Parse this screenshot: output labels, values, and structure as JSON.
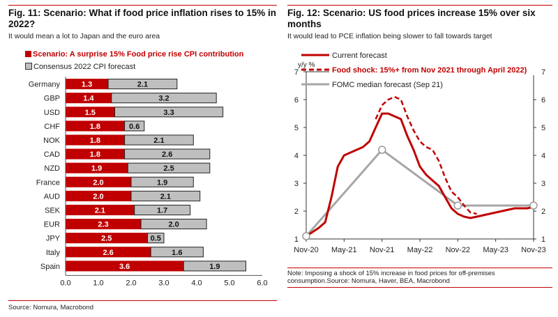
{
  "left": {
    "title": "Fig. 11: Scenario: What if food price inflation rises to 15% in 2022?",
    "subtitle": "It would mean a lot to Japan and the euro area",
    "source": "Source: Nomura, Macrobond"
  },
  "right": {
    "title": "Fig. 12: Scenario: US food prices increase 15% over six months",
    "subtitle": "It would lead to PCE inflation being slower to fall towards target",
    "note": "Note: Imposing a shock of 15% increase in food prices for off-premises consumption.Source: Nomura, Haver, BEA, Macrobond"
  },
  "colors": {
    "accent": "#c00000",
    "gray_bar": "#bfbfbf",
    "fomc": "#a6a6a6"
  },
  "chart_data": [
    {
      "type": "bar",
      "orientation": "horizontal",
      "stacked": true,
      "categories": [
        "Germany",
        "GBP",
        "USD",
        "CHF",
        "NOK",
        "CAD",
        "NZD",
        "France",
        "AUD",
        "SEK",
        "EUR",
        "JPY",
        "Italy",
        "Spain"
      ],
      "series": [
        {
          "name": "Scenario: A surprise 15% Food price rise CPI contribution",
          "color": "#c00000",
          "values": [
            1.3,
            1.4,
            1.5,
            1.8,
            1.8,
            1.8,
            1.9,
            2.0,
            2.0,
            2.1,
            2.3,
            2.5,
            2.6,
            3.6
          ]
        },
        {
          "name": "Consensus 2022 CPI forecast",
          "color": "#bfbfbf",
          "values": [
            2.1,
            3.2,
            3.3,
            0.6,
            2.1,
            2.6,
            2.5,
            1.9,
            2.1,
            1.7,
            2.0,
            0.5,
            1.6,
            1.9
          ]
        }
      ],
      "xlim": [
        0,
        6
      ],
      "xticks": [
        "0.0",
        "1.0",
        "2.0",
        "3.0",
        "4.0",
        "5.0",
        "6.0"
      ],
      "legend": "top-left"
    },
    {
      "type": "line",
      "ylabel": "y/y %",
      "ylim": [
        1,
        7
      ],
      "yticks": [
        "1",
        "2",
        "3",
        "4",
        "5",
        "6",
        "7"
      ],
      "xticks": [
        "Nov-20",
        "May-21",
        "Nov-21",
        "May-22",
        "Nov-22",
        "May-23",
        "Nov-23"
      ],
      "series": [
        {
          "name": "Current forecast",
          "color": "#c00000",
          "style": "solid",
          "points": [
            [
              "2020-11",
              1.1
            ],
            [
              "2021-01",
              1.4
            ],
            [
              "2021-02",
              1.6
            ],
            [
              "2021-03",
              2.5
            ],
            [
              "2021-04",
              3.6
            ],
            [
              "2021-05",
              4.0
            ],
            [
              "2021-06",
              4.1
            ],
            [
              "2021-07",
              4.2
            ],
            [
              "2021-08",
              4.3
            ],
            [
              "2021-09",
              4.5
            ],
            [
              "2021-10",
              5.0
            ],
            [
              "2021-11",
              5.5
            ],
            [
              "2021-12",
              5.5
            ],
            [
              "2022-01",
              5.4
            ],
            [
              "2022-02",
              5.3
            ],
            [
              "2022-03",
              4.7
            ],
            [
              "2022-04",
              4.2
            ],
            [
              "2022-05",
              3.6
            ],
            [
              "2022-06",
              3.3
            ],
            [
              "2022-07",
              3.1
            ],
            [
              "2022-08",
              2.9
            ],
            [
              "2022-09",
              2.5
            ],
            [
              "2022-10",
              2.1
            ],
            [
              "2022-11",
              1.9
            ],
            [
              "2022-12",
              1.8
            ],
            [
              "2023-01",
              1.75
            ],
            [
              "2023-02",
              1.8
            ],
            [
              "2023-03",
              1.85
            ],
            [
              "2023-04",
              1.9
            ],
            [
              "2023-05",
              1.95
            ],
            [
              "2023-06",
              2.0
            ],
            [
              "2023-07",
              2.05
            ],
            [
              "2023-08",
              2.1
            ],
            [
              "2023-09",
              2.1
            ],
            [
              "2023-10",
              2.1
            ],
            [
              "2023-11",
              2.15
            ]
          ]
        },
        {
          "name": "Food shock: 15%+ from Nov 2021 through April 2022)",
          "color": "#c00000",
          "style": "dashed",
          "points": [
            [
              "2021-10",
              5.3
            ],
            [
              "2021-11",
              5.8
            ],
            [
              "2021-12",
              6.0
            ],
            [
              "2022-01",
              6.1
            ],
            [
              "2022-02",
              6.0
            ],
            [
              "2022-03",
              5.4
            ],
            [
              "2022-04",
              4.9
            ],
            [
              "2022-05",
              4.5
            ],
            [
              "2022-06",
              4.3
            ],
            [
              "2022-07",
              4.2
            ],
            [
              "2022-08",
              3.8
            ],
            [
              "2022-09",
              3.2
            ],
            [
              "2022-10",
              2.7
            ],
            [
              "2022-11",
              2.5
            ],
            [
              "2022-12",
              2.2
            ],
            [
              "2023-01",
              1.95
            ],
            [
              "2023-02",
              1.9
            ]
          ]
        },
        {
          "name": "FOMC median forecast (Sep 21)",
          "color": "#a6a6a6",
          "style": "solid",
          "markers": true,
          "points": [
            [
              "2020-11",
              1.1
            ],
            [
              "2021-11",
              4.2
            ],
            [
              "2022-11",
              2.2
            ],
            [
              "2023-11",
              2.2
            ]
          ]
        }
      ],
      "legend": "top-left"
    }
  ]
}
